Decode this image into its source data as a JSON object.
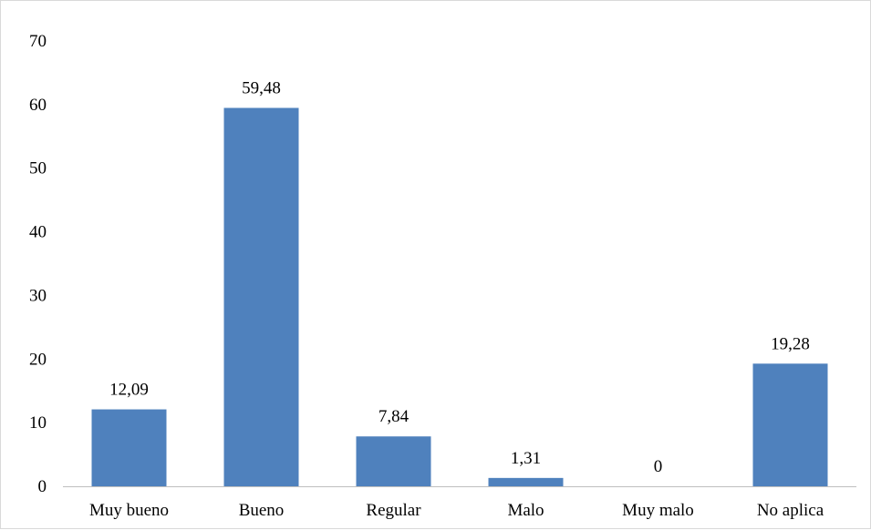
{
  "chart_data": {
    "type": "bar",
    "categories": [
      "Muy bueno",
      "Bueno",
      "Regular",
      "Malo",
      "Muy malo",
      "No aplica"
    ],
    "values": [
      12.09,
      59.48,
      7.84,
      1.31,
      0,
      19.28
    ],
    "value_labels": [
      "12,09",
      "59,48",
      "7,84",
      "1,31",
      "0",
      "19,28"
    ],
    "title": "",
    "xlabel": "",
    "ylabel": "",
    "ylim": [
      0,
      70
    ],
    "yticks": [
      0,
      10,
      20,
      30,
      40,
      50,
      60,
      70
    ],
    "grid": false,
    "bar_color": "#4f81bd",
    "axis_color": "#bfbfbf"
  }
}
